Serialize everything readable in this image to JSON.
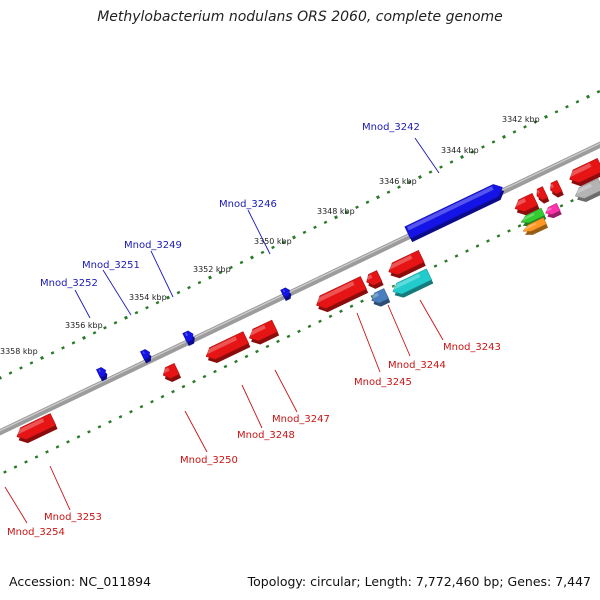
{
  "title": "Methylobacterium nodulans ORS 2060, complete genome",
  "footer": {
    "accession": "Accession: NC_011894",
    "summary": "Topology: circular; Length: 7,772,460 bp; Genes: 7,447"
  },
  "colors": {
    "forward_label": "#1a1ab4",
    "reverse_label": "#c81414",
    "backbone": "#808080",
    "tick_upper": "#2a7a2a",
    "tick_lower": "#2a7a2a"
  },
  "upper_ticks": [
    {
      "label": "3342 kbp"
    },
    {
      "label": "3344 kbp"
    },
    {
      "label": "3346 kbp"
    },
    {
      "label": "3348 kbp"
    },
    {
      "label": "3350 kbp"
    },
    {
      "label": "3352 kbp"
    },
    {
      "label": "3354 kbp"
    },
    {
      "label": "3356 kbp"
    },
    {
      "label": "3358 kbp"
    }
  ],
  "forward_labels": [
    {
      "text": "Mnod_3242"
    },
    {
      "text": "Mnod_3246"
    },
    {
      "text": "Mnod_3249"
    },
    {
      "text": "Mnod_3251"
    },
    {
      "text": "Mnod_3252"
    }
  ],
  "reverse_labels": [
    {
      "text": "Mnod_3243"
    },
    {
      "text": "Mnod_3244"
    },
    {
      "text": "Mnod_3245"
    },
    {
      "text": "Mnod_3247"
    },
    {
      "text": "Mnod_3248"
    },
    {
      "text": "Mnod_3250"
    },
    {
      "text": "Mnod_3253"
    },
    {
      "text": "Mnod_3254"
    }
  ]
}
